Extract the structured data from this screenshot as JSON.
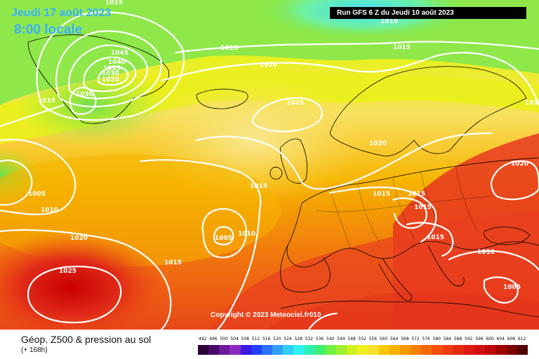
{
  "header": {
    "date_text": "Jeudi 17 août 2023",
    "time_text": "8:00 locale",
    "run_text": "Run GFS 6 Z du Jeudi 10 août 2023"
  },
  "copyright": "Copyright © 2023 Meteociel.fr",
  "footer": {
    "title": "Géop. Z500 & pression au sol",
    "subtitle": "(+ 168h)"
  },
  "colors": {
    "cyan": "#40e0ff",
    "lime": "#7fe84a",
    "yellow": "#f3f000",
    "pale_yellow": "#f8e85a",
    "orange": "#f6b400",
    "red_orange": "#f05a10",
    "red": "#e63020",
    "dark_red": "#c80000",
    "isobar": "#ffffff"
  },
  "scale": {
    "values": [
      "492",
      "496",
      "500",
      "504",
      "508",
      "512",
      "516",
      "520",
      "524",
      "528",
      "532",
      "536",
      "540",
      "544",
      "548",
      "552",
      "556",
      "560",
      "564",
      "568",
      "572",
      "576",
      "580",
      "584",
      "588",
      "592",
      "596",
      "600",
      "604",
      "608",
      "612"
    ],
    "colors": [
      "#2a0038",
      "#4a0a6a",
      "#6a1a9a",
      "#8a2ac0",
      "#3a1ae0",
      "#2040ff",
      "#2a70ff",
      "#30a0ff",
      "#30d0ff",
      "#30f0f0",
      "#30f0b0",
      "#40f070",
      "#70f040",
      "#a0f030",
      "#d0f020",
      "#f0f020",
      "#f8e030",
      "#f8c800",
      "#f8b000",
      "#f89800",
      "#f88000",
      "#f86800",
      "#f85010",
      "#f03a10",
      "#e82a10",
      "#e01a10",
      "#d01010",
      "#c00808",
      "#a00000",
      "#800000",
      "#500000"
    ]
  },
  "isobar_labels": [
    {
      "text": "1015"
    },
    {
      "text": "1045"
    },
    {
      "text": "1040"
    },
    {
      "text": "1035"
    },
    {
      "text": "1030"
    },
    {
      "text": "1025"
    },
    {
      "text": "1030"
    },
    {
      "text": "1015"
    },
    {
      "text": "1015"
    },
    {
      "text": "1020"
    },
    {
      "text": "1010"
    },
    {
      "text": "1015"
    },
    {
      "text": "1025"
    },
    {
      "text": "1020"
    },
    {
      "text": "1015"
    },
    {
      "text": "1005"
    },
    {
      "text": "1010"
    },
    {
      "text": "1020"
    },
    {
      "text": "1025"
    },
    {
      "text": "1015"
    },
    {
      "text": "1005"
    },
    {
      "text": "1010"
    },
    {
      "text": "1015"
    },
    {
      "text": "1015"
    },
    {
      "text": "1015"
    },
    {
      "text": "1015"
    },
    {
      "text": "1020"
    },
    {
      "text": "1010"
    },
    {
      "text": "1005"
    },
    {
      "text": "010"
    }
  ]
}
